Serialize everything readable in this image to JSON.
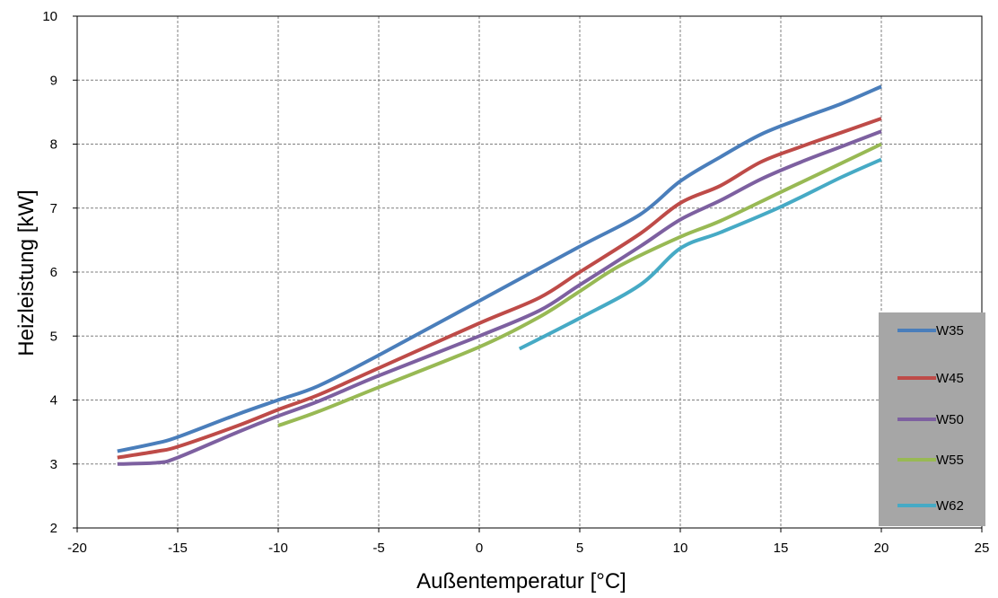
{
  "chart_data": {
    "type": "line",
    "xlabel": "Außentemperatur [°C]",
    "ylabel": "Heizleistung [kW]",
    "xlim": [
      -20,
      25
    ],
    "ylim": [
      2,
      10
    ],
    "xticks": [
      -20,
      -15,
      -10,
      -5,
      0,
      5,
      10,
      15,
      20,
      25
    ],
    "yticks": [
      2,
      3,
      4,
      5,
      6,
      7,
      8,
      9,
      10
    ],
    "xtick_labels": [
      "-20",
      "-15",
      "-10",
      "-5",
      "0",
      "5",
      "10",
      "15",
      "20",
      "25"
    ],
    "ytick_labels": [
      "2",
      "3",
      "4",
      "5",
      "6",
      "7",
      "8",
      "9",
      "10"
    ],
    "grid": true,
    "legend_position": "right",
    "series": [
      {
        "name": "W35",
        "color": "#4a7ebb",
        "x": [
          -18,
          -16,
          -15,
          -12,
          -10,
          -8,
          -5,
          0,
          5,
          8,
          10,
          12,
          14,
          16,
          18,
          20
        ],
        "y": [
          3.2,
          3.33,
          3.42,
          3.78,
          4.0,
          4.22,
          4.7,
          5.55,
          6.4,
          6.9,
          7.42,
          7.8,
          8.15,
          8.4,
          8.63,
          8.9
        ]
      },
      {
        "name": "W45",
        "color": "#be4b48",
        "x": [
          -18,
          -16,
          -15,
          -12,
          -10,
          -8,
          -5,
          0,
          3,
          5,
          8,
          10,
          12,
          14,
          16,
          18,
          20
        ],
        "y": [
          3.1,
          3.2,
          3.27,
          3.6,
          3.85,
          4.08,
          4.5,
          5.2,
          5.6,
          6.0,
          6.6,
          7.08,
          7.35,
          7.72,
          7.96,
          8.18,
          8.4
        ]
      },
      {
        "name": "W50",
        "color": "#7d60a0",
        "x": [
          -18,
          -16,
          -15,
          -12,
          -10,
          -8,
          -5,
          0,
          3,
          5,
          8,
          10,
          12,
          14,
          16,
          18,
          20
        ],
        "y": [
          3.0,
          3.02,
          3.1,
          3.5,
          3.75,
          3.98,
          4.38,
          5.0,
          5.4,
          5.8,
          6.4,
          6.82,
          7.12,
          7.45,
          7.72,
          7.96,
          8.2
        ]
      },
      {
        "name": "W55",
        "color": "#98b954",
        "x": [
          -10,
          -8,
          -5,
          0,
          3,
          5,
          7,
          10,
          12,
          15,
          18,
          20
        ],
        "y": [
          3.6,
          3.82,
          4.2,
          4.83,
          5.3,
          5.7,
          6.1,
          6.55,
          6.8,
          7.25,
          7.7,
          8.0
        ]
      },
      {
        "name": "W62",
        "color": "#46aac5",
        "x": [
          2,
          5,
          8,
          10,
          12,
          15,
          18,
          20
        ],
        "y": [
          4.8,
          5.28,
          5.8,
          6.37,
          6.62,
          7.02,
          7.48,
          7.76
        ]
      }
    ]
  }
}
